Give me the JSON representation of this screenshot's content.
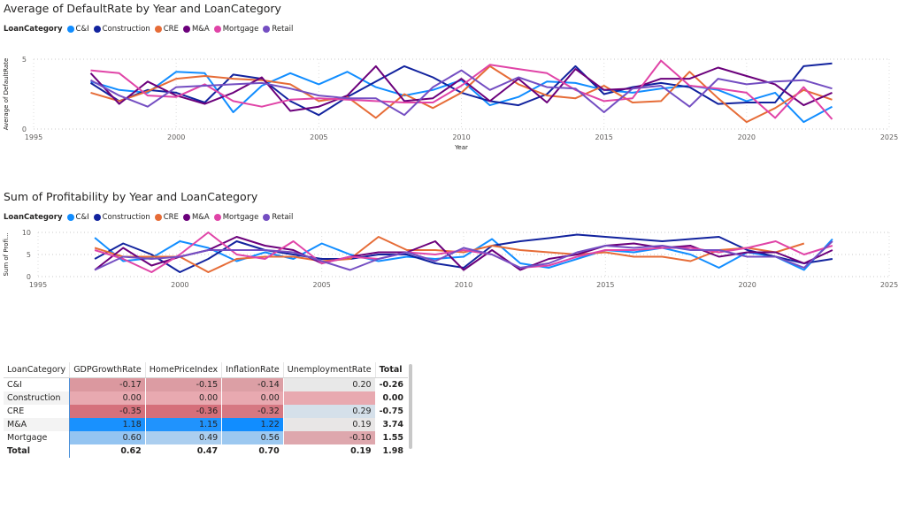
{
  "chart_data": [
    {
      "type": "line",
      "title": "Average of DefaultRate by Year and LoanCategory",
      "legend_title": "LoanCategory",
      "legend_position": "top-left",
      "xlabel": "Year",
      "ylabel": "Average of DefaultRate",
      "xlim": [
        1995,
        2025
      ],
      "ylim": [
        0,
        5
      ],
      "xticks": [
        "1995",
        "2000",
        "2005",
        "2010",
        "2015",
        "2020",
        "2025"
      ],
      "yticks": [
        "0",
        "5"
      ],
      "grid": "dotted",
      "x": [
        1997,
        1998,
        1999,
        2000,
        2001,
        2002,
        2003,
        2004,
        2005,
        2006,
        2007,
        2008,
        2009,
        2010,
        2011,
        2012,
        2013,
        2014,
        2015,
        2016,
        2017,
        2018,
        2019,
        2020,
        2021,
        2022,
        2023
      ],
      "series": [
        {
          "name": "C&I",
          "color": "#118DFF",
          "values": [
            3.4,
            2.8,
            2.6,
            4.1,
            4.0,
            1.2,
            3.1,
            4.0,
            3.2,
            4.1,
            3.0,
            2.4,
            2.8,
            3.5,
            1.7,
            2.3,
            3.4,
            3.3,
            2.8,
            2.6,
            2.9,
            3.1,
            2.8,
            2.0,
            2.6,
            0.5,
            1.6
          ]
        },
        {
          "name": "Construction",
          "color": "#12239E",
          "values": [
            3.3,
            2.0,
            2.8,
            2.6,
            1.9,
            3.9,
            3.6,
            2.0,
            1.0,
            2.3,
            3.4,
            4.5,
            3.7,
            2.6,
            2.0,
            1.7,
            2.5,
            4.5,
            2.5,
            3.0,
            3.3,
            3.0,
            1.8,
            1.9,
            1.9,
            4.5,
            4.7
          ]
        },
        {
          "name": "CRE",
          "color": "#E66C37",
          "values": [
            2.6,
            2.0,
            2.7,
            3.6,
            3.8,
            3.6,
            3.5,
            3.2,
            2.0,
            2.3,
            0.8,
            2.5,
            1.5,
            2.6,
            4.5,
            3.2,
            2.4,
            2.2,
            3.1,
            1.9,
            2.0,
            4.1,
            2.2,
            0.5,
            1.5,
            2.8,
            2.1
          ]
        },
        {
          "name": "M&A",
          "color": "#6B007B",
          "values": [
            4.0,
            1.8,
            3.4,
            2.4,
            1.8,
            2.6,
            3.7,
            1.3,
            1.6,
            2.4,
            4.5,
            2.0,
            2.2,
            3.6,
            2.0,
            3.6,
            1.9,
            4.3,
            2.8,
            2.9,
            3.6,
            3.6,
            4.4,
            3.8,
            3.2,
            1.7,
            2.6
          ]
        },
        {
          "name": "Mortgage",
          "color": "#E044A7",
          "values": [
            4.2,
            4.0,
            2.4,
            2.3,
            3.2,
            2.0,
            1.6,
            2.1,
            2.2,
            2.1,
            2.0,
            1.9,
            1.9,
            3.1,
            4.6,
            4.3,
            4.0,
            2.8,
            2.0,
            2.2,
            4.9,
            3.1,
            2.9,
            2.6,
            0.8,
            3.0,
            0.7
          ]
        },
        {
          "name": "Retail",
          "color": "#744EC2",
          "values": [
            3.5,
            2.4,
            1.6,
            3.0,
            3.1,
            3.2,
            3.3,
            2.9,
            2.4,
            2.2,
            2.2,
            1.0,
            3.0,
            4.2,
            2.8,
            3.7,
            3.0,
            2.9,
            1.2,
            2.9,
            3.1,
            1.6,
            3.6,
            3.2,
            3.4,
            3.5,
            2.9
          ]
        }
      ]
    },
    {
      "type": "line",
      "title": "Sum of Profitability by Year and LoanCategory",
      "legend_title": "LoanCategory",
      "legend_position": "top-left",
      "xlabel": "",
      "ylabel": "Sum of Profi...",
      "xlim": [
        1995,
        2025
      ],
      "ylim": [
        0,
        10
      ],
      "xticks": [
        "1995",
        "2000",
        "2005",
        "2010",
        "2015",
        "2020",
        "2025"
      ],
      "yticks": [
        "0",
        "5",
        "10"
      ],
      "grid": "dotted",
      "x": [
        1997,
        1998,
        1999,
        2000,
        2001,
        2002,
        2003,
        2004,
        2005,
        2006,
        2007,
        2008,
        2009,
        2010,
        2011,
        2012,
        2013,
        2014,
        2015,
        2016,
        2017,
        2018,
        2019,
        2020,
        2021,
        2022,
        2023
      ],
      "series": [
        {
          "name": "C&I",
          "color": "#118DFF",
          "values": [
            8.8,
            3.5,
            4.2,
            8.0,
            6.5,
            3.5,
            5.5,
            4.0,
            7.5,
            5.0,
            3.5,
            4.5,
            4.0,
            4.5,
            8.5,
            3.0,
            2.0,
            4.0,
            6.0,
            5.5,
            6.5,
            5.0,
            2.0,
            5.5,
            4.5,
            1.5,
            8.5
          ]
        },
        {
          "name": "Construction",
          "color": "#12239E",
          "values": [
            4.0,
            7.5,
            5.0,
            1.0,
            4.0,
            8.0,
            6.0,
            5.0,
            4.0,
            4.0,
            5.0,
            5.0,
            3.0,
            2.0,
            7.0,
            8.0,
            8.7,
            9.5,
            9.0,
            8.5,
            8.0,
            8.5,
            9.0,
            6.0,
            4.5,
            3.0,
            4.0
          ]
        },
        {
          "name": "CRE",
          "color": "#E66C37",
          "values": [
            6.5,
            4.5,
            4.5,
            4.5,
            1.0,
            4.0,
            4.5,
            4.5,
            3.5,
            4.0,
            9.0,
            6.0,
            6.0,
            5.5,
            7.0,
            6.0,
            5.5,
            5.0,
            5.5,
            4.5,
            4.5,
            3.5,
            6.0,
            6.5,
            5.5,
            7.5,
            null
          ]
        },
        {
          "name": "M&A",
          "color": "#6B007B",
          "values": [
            1.5,
            6.5,
            2.5,
            4.5,
            6.0,
            9.0,
            7.0,
            6.0,
            3.0,
            4.5,
            5.5,
            5.5,
            8.0,
            1.5,
            6.0,
            1.5,
            4.0,
            5.0,
            7.0,
            7.5,
            6.5,
            7.0,
            4.5,
            5.5,
            5.5,
            3.0,
            6.0
          ]
        },
        {
          "name": "Mortgage",
          "color": "#E044A7",
          "values": [
            6.0,
            4.0,
            1.0,
            5.0,
            10.0,
            5.0,
            4.0,
            8.0,
            3.0,
            4.5,
            4.0,
            5.5,
            5.0,
            6.0,
            5.0,
            2.0,
            2.5,
            4.5,
            6.0,
            6.0,
            6.5,
            6.5,
            5.5,
            6.5,
            8.0,
            5.0,
            7.0
          ]
        },
        {
          "name": "Retail",
          "color": "#744EC2",
          "values": [
            1.5,
            4.5,
            4.0,
            4.5,
            6.0,
            6.0,
            6.0,
            5.5,
            3.5,
            1.5,
            4.0,
            5.5,
            3.5,
            6.5,
            5.0,
            2.0,
            3.0,
            5.5,
            7.0,
            6.5,
            7.0,
            6.0,
            6.0,
            4.5,
            4.5,
            2.0,
            8.0
          ]
        }
      ]
    },
    {
      "type": "table",
      "columns": [
        "LoanCategory",
        "GDPGrowthRate",
        "HomePriceIndex",
        "InflationRate",
        "UnemploymentRate",
        "Total"
      ],
      "rows": [
        {
          "label": "C&I",
          "values": [
            "-0.17",
            "-0.15",
            "-0.14",
            "0.20"
          ],
          "total": "-0.26"
        },
        {
          "label": "Construction",
          "values": [
            "0.00",
            "0.00",
            "0.00",
            ""
          ],
          "total": "0.00"
        },
        {
          "label": "CRE",
          "values": [
            "-0.35",
            "-0.36",
            "-0.32",
            "0.29"
          ],
          "total": "-0.75"
        },
        {
          "label": "M&A",
          "values": [
            "1.18",
            "1.15",
            "1.22",
            "0.19"
          ],
          "total": "3.74"
        },
        {
          "label": "Mortgage",
          "values": [
            "0.60",
            "0.49",
            "0.56",
            "-0.10"
          ],
          "total": "1.55"
        }
      ],
      "total_row": {
        "label": "Total",
        "values": [
          "0.62",
          "0.47",
          "0.70",
          "0.19"
        ],
        "total": "1.98"
      }
    }
  ]
}
